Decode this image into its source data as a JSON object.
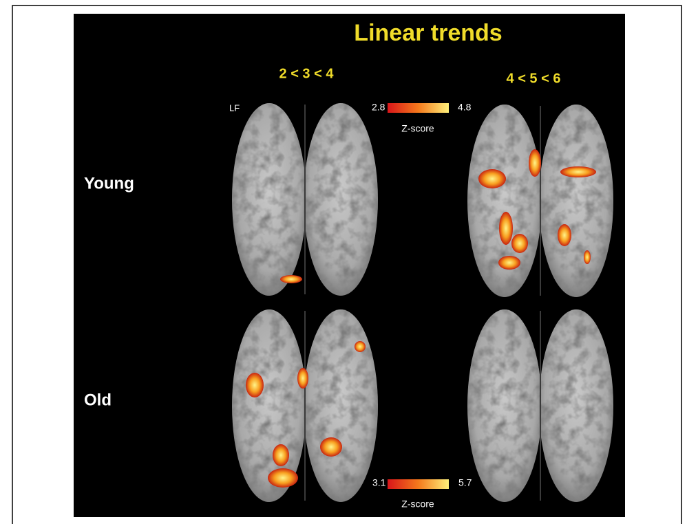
{
  "title": "Linear trends",
  "columns": [
    "2 < 3 < 4",
    "4 < 5 < 6"
  ],
  "rows": [
    "Young",
    "Old"
  ],
  "orientation_label": "LF",
  "colorbars": [
    {
      "min": "2.8",
      "max": "4.8",
      "label": "Z-score"
    },
    {
      "min": "3.1",
      "max": "5.7",
      "label": "Z-score"
    }
  ]
}
